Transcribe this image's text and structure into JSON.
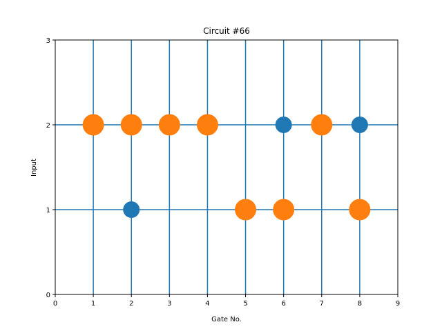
{
  "chart_data": {
    "type": "scatter",
    "title": "Circuit #66",
    "xlabel": "Gate No.",
    "ylabel": "Input",
    "xlim": [
      0,
      9
    ],
    "ylim": [
      0,
      3
    ],
    "xticks": [
      "0",
      "1",
      "2",
      "3",
      "4",
      "5",
      "6",
      "7",
      "8",
      "9"
    ],
    "yticks": [
      "0",
      "1",
      "2",
      "3"
    ],
    "wires": {
      "vertical_x": [
        1,
        2,
        3,
        4,
        5,
        6,
        7,
        8
      ],
      "horizontal_y": [
        1,
        2
      ],
      "color": "#1f77b4"
    },
    "series": [
      {
        "color": "#ff7f0e",
        "marker_size": "large",
        "points": [
          {
            "x": 1,
            "y": 2
          },
          {
            "x": 2,
            "y": 2
          },
          {
            "x": 3,
            "y": 2
          },
          {
            "x": 4,
            "y": 2
          },
          {
            "x": 5,
            "y": 1
          },
          {
            "x": 6,
            "y": 1
          },
          {
            "x": 7,
            "y": 2
          },
          {
            "x": 8,
            "y": 1
          }
        ]
      },
      {
        "color": "#1f77b4",
        "marker_size": "small",
        "points": [
          {
            "x": 2,
            "y": 1
          },
          {
            "x": 6,
            "y": 2
          },
          {
            "x": 8,
            "y": 2
          }
        ]
      }
    ],
    "grid": false,
    "legend": "none"
  }
}
